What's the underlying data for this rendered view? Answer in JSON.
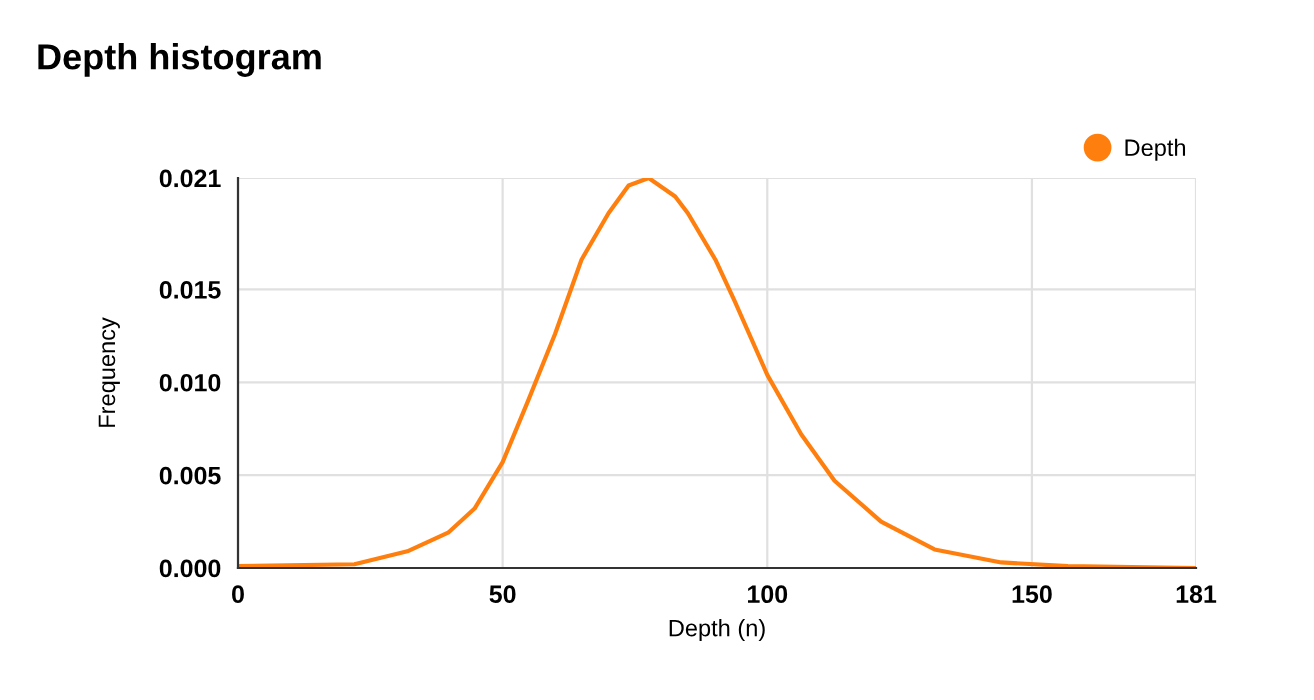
{
  "chart_data": {
    "type": "line",
    "title": "Depth histogram",
    "xlabel": "Depth (n)",
    "ylabel": "Frequency",
    "x": [
      0,
      22,
      32,
      39.7,
      44.7,
      50,
      54.8,
      59.9,
      64.9,
      70,
      73.8,
      77.6,
      82.6,
      85,
      90.2,
      93.8,
      100,
      106.4,
      112.7,
      121.5,
      131.6,
      144.2,
      156.8,
      181
    ],
    "series": [
      {
        "name": "Depth",
        "color": "#ff7f0e",
        "values": [
          0.0001,
          0.0002,
          0.0009,
          0.0019,
          0.0032,
          0.0057,
          0.009,
          0.0126,
          0.0166,
          0.0191,
          0.0206,
          0.021,
          0.02,
          0.0191,
          0.0166,
          0.0144,
          0.0104,
          0.0072,
          0.0047,
          0.0025,
          0.001,
          0.0003,
          0.0001,
          0.0
        ]
      }
    ],
    "xlim": [
      0,
      181
    ],
    "xticks": [
      0,
      50,
      100,
      150,
      181
    ],
    "ylim": [
      0,
      0.021
    ],
    "yticks": [
      {
        "value": 0,
        "label": "0.000"
      },
      {
        "value": 0.005,
        "label": "0.005"
      },
      {
        "value": 0.01,
        "label": "0.010"
      },
      {
        "value": 0.015,
        "label": "0.015"
      },
      {
        "value": 0.021,
        "label": "0.021"
      }
    ],
    "grid": true,
    "legend": "top right",
    "marker": "none",
    "line_style": "solid"
  }
}
